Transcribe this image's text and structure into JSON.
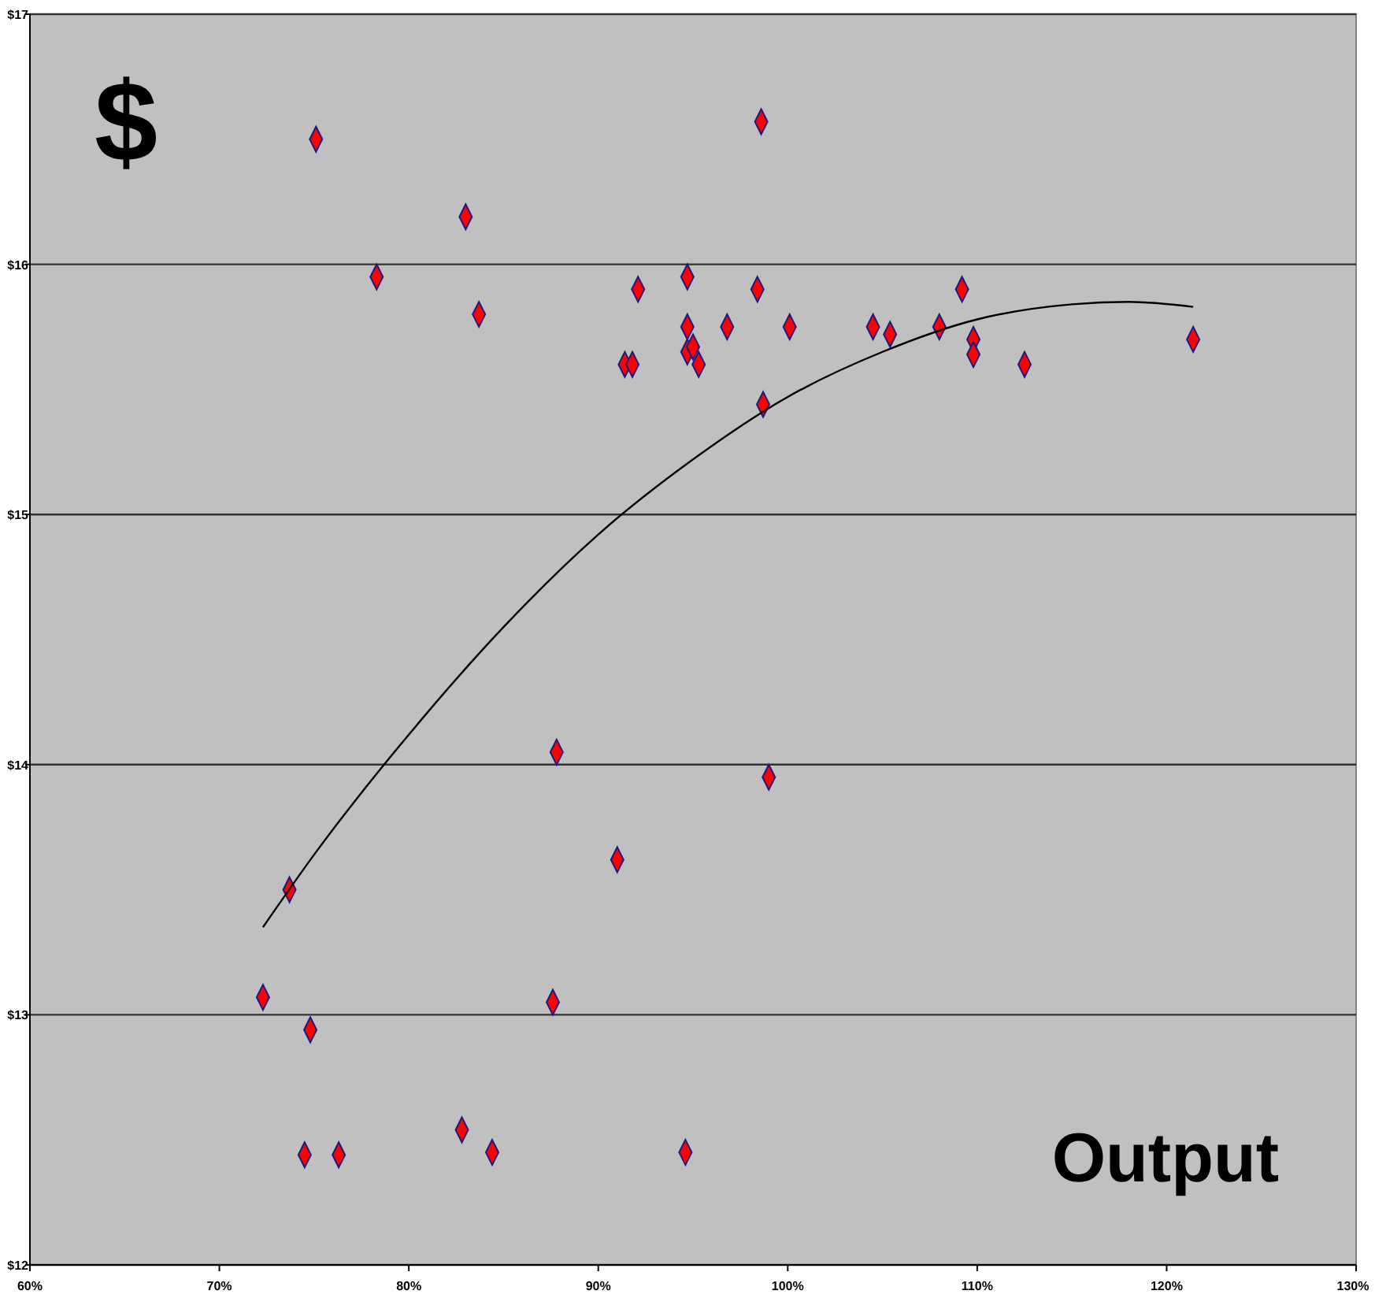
{
  "chart_data": {
    "type": "scatter",
    "xlabel": "Output",
    "ylabel": "$",
    "xlim": [
      60,
      130
    ],
    "ylim": [
      12,
      17
    ],
    "xticks": [
      {
        "value": 60,
        "label": "60%"
      },
      {
        "value": 70,
        "label": "70%"
      },
      {
        "value": 80,
        "label": "80%"
      },
      {
        "value": 90,
        "label": "90%"
      },
      {
        "value": 100,
        "label": "100%"
      },
      {
        "value": 110,
        "label": "110%"
      },
      {
        "value": 120,
        "label": "120%"
      },
      {
        "value": 130,
        "label": "130%"
      }
    ],
    "yticks": [
      {
        "value": 12,
        "label": "$12"
      },
      {
        "value": 13,
        "label": "$13"
      },
      {
        "value": 14,
        "label": "$14"
      },
      {
        "value": 15,
        "label": "$15"
      },
      {
        "value": 16,
        "label": "$16"
      },
      {
        "value": 17,
        "label": "$17"
      }
    ],
    "grid": "y",
    "marker": "diamond",
    "series": [
      {
        "color": "#ff0000",
        "x": [
          75.1,
          98.6,
          83.0,
          78.3,
          83.7,
          92.1,
          94.7,
          98.4,
          109.2,
          91.4,
          91.8,
          94.7,
          94.7,
          95.0,
          95.3,
          96.8,
          100.1,
          98.7,
          104.5,
          105.4,
          108.0,
          109.8,
          109.8,
          112.5,
          121.4,
          87.8,
          99.0,
          91.0,
          73.7,
          72.3,
          87.6,
          74.8,
          82.8,
          74.5,
          76.3,
          84.4,
          94.6
        ],
        "values": [
          16.5,
          16.57,
          16.19,
          15.95,
          15.8,
          15.9,
          15.95,
          15.9,
          15.9,
          15.6,
          15.6,
          15.75,
          15.65,
          15.67,
          15.6,
          15.75,
          15.75,
          15.44,
          15.75,
          15.72,
          15.75,
          15.7,
          15.64,
          15.6,
          15.7,
          14.05,
          13.95,
          13.62,
          13.5,
          13.07,
          13.05,
          12.94,
          12.54,
          12.44,
          12.44,
          12.45,
          12.45
        ]
      },
      {
        "type": "line",
        "color": "#000000",
        "marker": "none",
        "x": [
          72.3,
          75,
          80,
          85,
          90,
          95,
          100,
          105,
          110,
          115,
          118,
          121.4
        ],
        "values": [
          13.35,
          13.64,
          14.12,
          14.55,
          14.92,
          15.22,
          15.47,
          15.65,
          15.78,
          15.84,
          15.85,
          15.83
        ]
      }
    ]
  }
}
